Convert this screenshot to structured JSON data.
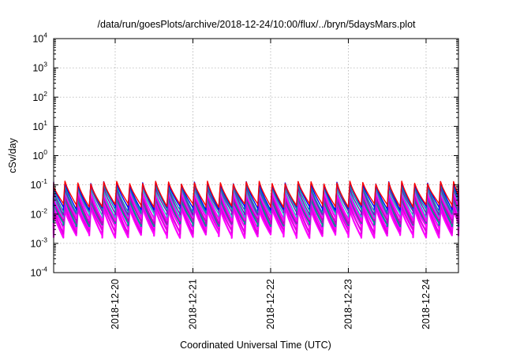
{
  "chart_data": {
    "type": "line",
    "title": "/data/run/goesPlots/archive/2018-12-24/10:00/flux/../bryn/5daysMars.plot",
    "xlabel": "Coordinated Universal Time (UTC)",
    "ylabel": "cSv/day",
    "yscale": "log",
    "ylim": [
      0.0001,
      10000
    ],
    "xlim": [
      "2018-12-19 05:00",
      "2018-12-24 10:00"
    ],
    "grid": true,
    "legend": "none",
    "y_ticks": [
      {
        "value": 0.0001,
        "base": "10",
        "exp": "-4"
      },
      {
        "value": 0.001,
        "base": "10",
        "exp": "-3"
      },
      {
        "value": 0.01,
        "base": "10",
        "exp": "-2"
      },
      {
        "value": 0.1,
        "base": "10",
        "exp": "-1"
      },
      {
        "value": 1,
        "base": "10",
        "exp": "0"
      },
      {
        "value": 10,
        "base": "10",
        "exp": "1"
      },
      {
        "value": 100,
        "base": "10",
        "exp": "2"
      },
      {
        "value": 1000,
        "base": "10",
        "exp": "3"
      },
      {
        "value": 10000,
        "base": "10",
        "exp": "4"
      }
    ],
    "x_ticks": [
      {
        "value": "2018-12-20",
        "label": "2018-12-20"
      },
      {
        "value": "2018-12-21",
        "label": "2018-12-21"
      },
      {
        "value": "2018-12-22",
        "label": "2018-12-22"
      },
      {
        "value": "2018-12-23",
        "label": "2018-12-23"
      },
      {
        "value": "2018-12-24",
        "label": "2018-12-24"
      }
    ],
    "pattern": {
      "description": "sawtooth dose-rate curves, sharp rise then decay, approx. 6 cycles per day",
      "period_hours": 4,
      "series_colors": [
        "#ff0000",
        "#0000ff",
        "#00a0a0",
        "#8000c0",
        "#20c0c0",
        "#ff00ff",
        "#c000c0",
        "#009090",
        "#ff00ff",
        "#e000e0",
        "#ff00ff"
      ],
      "series_peaks": [
        0.12,
        0.115,
        0.1,
        0.085,
        0.07,
        0.06,
        0.045,
        0.035,
        0.028,
        0.022,
        0.016
      ],
      "series_troughs": [
        0.02,
        0.016,
        0.013,
        0.011,
        0.009,
        0.007,
        0.0055,
        0.0045,
        0.0035,
        0.0025,
        0.0018
      ]
    }
  }
}
